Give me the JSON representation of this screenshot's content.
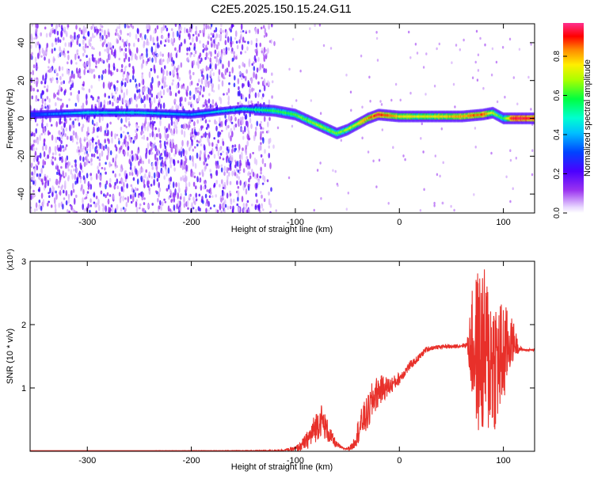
{
  "title": "C2E5.2025.150.15.24.G11",
  "chart_data": [
    {
      "type": "heatmap",
      "xlabel": "Height of straight line (km)",
      "ylabel": "Frequency (Hz)",
      "xlim": [
        -355,
        130
      ],
      "ylim": [
        -50,
        50
      ],
      "xticks": [
        -300,
        -200,
        -100,
        0,
        100
      ],
      "yticks": [
        -40,
        -20,
        0,
        20,
        40
      ],
      "colorbar": {
        "label": "Normalized spectral amplitude",
        "range": [
          0,
          0.97
        ],
        "ticks": [
          0.0,
          0.2,
          0.4,
          0.6,
          0.8
        ],
        "colormap": "white-purple-blue-cyan-green-yellow-red-magenta"
      },
      "ridge": {
        "x": [
          -350,
          -300,
          -250,
          -200,
          -150,
          -120,
          -100,
          -80,
          -60,
          -50,
          -40,
          -30,
          -20,
          0,
          20,
          40,
          60,
          80,
          90,
          100,
          110,
          130
        ],
        "frequency": [
          2,
          3,
          3,
          2,
          5,
          4,
          2,
          -3,
          -8,
          -6,
          -3,
          0,
          2,
          1,
          1,
          1,
          1,
          2,
          3,
          0,
          0,
          0
        ],
        "amplitude": [
          0.25,
          0.45,
          0.45,
          0.35,
          0.5,
          0.55,
          0.6,
          0.65,
          0.62,
          0.65,
          0.72,
          0.8,
          0.9,
          0.75,
          0.72,
          0.75,
          0.8,
          0.85,
          0.7,
          0.55,
          0.95,
          0.9
        ]
      }
    },
    {
      "type": "line",
      "xlabel": "Height of straight line (km)",
      "ylabel": "SNR (10 * v/v)",
      "yscale_label": "(x10⁴)",
      "xlim": [
        -355,
        130
      ],
      "ylim": [
        0,
        3
      ],
      "xticks": [
        -300,
        -200,
        -100,
        0,
        100
      ],
      "yticks": [
        1,
        2,
        3
      ],
      "series": [
        {
          "color": "#e8302a",
          "x": [
            -355,
            -250,
            -150,
            -120,
            -110,
            -100,
            -95,
            -90,
            -85,
            -80,
            -75,
            -70,
            -65,
            -60,
            -55,
            -50,
            -45,
            -40,
            -35,
            -30,
            -25,
            -20,
            -15,
            -10,
            -5,
            0,
            5,
            10,
            15,
            20,
            25,
            30,
            35,
            40,
            45,
            50,
            55,
            60,
            65,
            70,
            75,
            80,
            85,
            90,
            95,
            100,
            105,
            110,
            115,
            120,
            130
          ],
          "values": [
            0.01,
            0.01,
            0.01,
            0.01,
            0.02,
            0.04,
            0.08,
            0.15,
            0.25,
            0.4,
            0.5,
            0.35,
            0.2,
            0.1,
            0.05,
            0.04,
            0.08,
            0.3,
            0.5,
            0.6,
            0.85,
            0.95,
            1.0,
            1.02,
            1.08,
            1.15,
            1.25,
            1.35,
            1.42,
            1.5,
            1.6,
            1.63,
            1.64,
            1.65,
            1.66,
            1.65,
            1.66,
            1.67,
            1.68,
            1.65,
            1.6,
            1.55,
            1.5,
            1.45,
            1.4,
            1.5,
            1.7,
            1.75,
            1.62,
            1.6,
            1.6
          ],
          "noise": [
            0,
            0,
            0.005,
            0.01,
            0.02,
            0.04,
            0.08,
            0.12,
            0.2,
            0.25,
            0.25,
            0.2,
            0.12,
            0.05,
            0.02,
            0.02,
            0.06,
            0.2,
            0.25,
            0.3,
            0.3,
            0.25,
            0.2,
            0.15,
            0.12,
            0.1,
            0.08,
            0.07,
            0.06,
            0.05,
            0.05,
            0.04,
            0.03,
            0.03,
            0.03,
            0.03,
            0.03,
            0.03,
            0.05,
            0.9,
            1.3,
            1.4,
            1.3,
            1.2,
            1.0,
            0.9,
            0.5,
            0.3,
            0.05,
            0.02,
            0.02
          ]
        }
      ]
    }
  ]
}
